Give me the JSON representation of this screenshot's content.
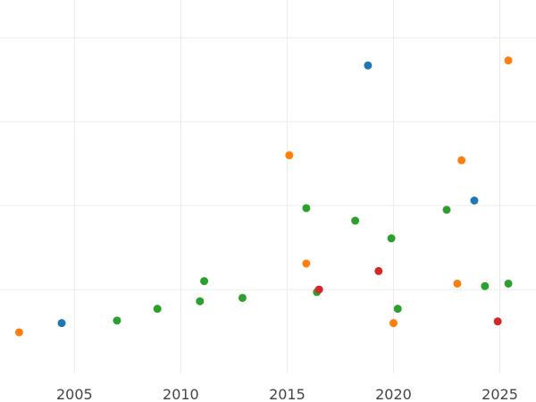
{
  "chart_data": {
    "type": "scatter",
    "title": "",
    "xlabel": "",
    "ylabel": "",
    "xlim": [
      2001.5,
      2026.7
    ],
    "ylim": [
      0,
      4.45
    ],
    "grid": true,
    "x_ticks": [
      2005,
      2010,
      2015,
      2020,
      2025
    ],
    "x_tick_labels": [
      "2005",
      "2010",
      "2015",
      "2020",
      "2025"
    ],
    "y_ticks": [
      1,
      2,
      3,
      4
    ],
    "y_tick_labels": [],
    "series": [
      {
        "color": "#1f77b4",
        "points": [
          {
            "x": 2004.4,
            "y": 0.6
          },
          {
            "x": 2018.8,
            "y": 3.67
          },
          {
            "x": 2023.8,
            "y": 2.06
          }
        ]
      },
      {
        "color": "#ff7f0e",
        "points": [
          {
            "x": 2002.4,
            "y": 0.49
          },
          {
            "x": 2015.1,
            "y": 2.6
          },
          {
            "x": 2015.9,
            "y": 1.31
          },
          {
            "x": 2020.0,
            "y": 0.6
          },
          {
            "x": 2023.0,
            "y": 1.07
          },
          {
            "x": 2023.2,
            "y": 2.54
          },
          {
            "x": 2025.4,
            "y": 3.73
          }
        ]
      },
      {
        "color": "#2ca02c",
        "points": [
          {
            "x": 2007.0,
            "y": 0.63
          },
          {
            "x": 2008.9,
            "y": 0.77
          },
          {
            "x": 2010.9,
            "y": 0.86
          },
          {
            "x": 2011.1,
            "y": 1.1
          },
          {
            "x": 2012.9,
            "y": 0.9
          },
          {
            "x": 2015.9,
            "y": 1.97
          },
          {
            "x": 2016.4,
            "y": 0.97
          },
          {
            "x": 2018.2,
            "y": 1.82
          },
          {
            "x": 2019.9,
            "y": 1.61
          },
          {
            "x": 2020.2,
            "y": 0.77
          },
          {
            "x": 2022.5,
            "y": 1.95
          },
          {
            "x": 2024.3,
            "y": 1.04
          },
          {
            "x": 2025.4,
            "y": 1.07
          }
        ]
      },
      {
        "color": "#d62728",
        "points": [
          {
            "x": 2016.5,
            "y": 1.0
          },
          {
            "x": 2019.3,
            "y": 1.22
          },
          {
            "x": 2024.9,
            "y": 0.62
          }
        ]
      }
    ]
  }
}
